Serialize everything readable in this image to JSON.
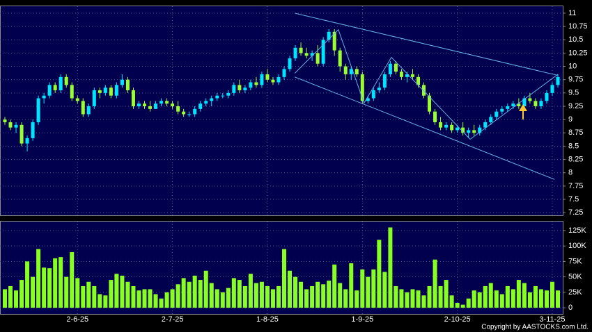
{
  "chart_data": [
    {
      "type": "candlestick",
      "up_color": "#00e5ff",
      "down_color": "#99ff33",
      "line_color": "#6ab0e8",
      "open": [
        9.0,
        8.95,
        8.85,
        8.9,
        8.55,
        8.65,
        8.95,
        9.4,
        9.45,
        9.65,
        9.55,
        9.8,
        9.65,
        9.4,
        9.35,
        9.1,
        9.25,
        9.55,
        9.5,
        9.6,
        9.45,
        9.65,
        9.75,
        9.55,
        9.25,
        9.3,
        9.25,
        9.2,
        9.3,
        9.35,
        9.3,
        9.25,
        9.15,
        9.1,
        9.1,
        9.2,
        9.3,
        9.35,
        9.4,
        9.45,
        9.45,
        9.5,
        9.65,
        9.55,
        9.6,
        9.7,
        9.65,
        9.85,
        9.75,
        9.7,
        9.8,
        9.95,
        10.15,
        10.35,
        10.25,
        10.2,
        10.25,
        10.05,
        10.5,
        10.65,
        10.3,
        10.0,
        9.85,
        9.95,
        9.85,
        9.35,
        9.4,
        9.55,
        9.6,
        9.85,
        10.05,
        9.9,
        9.8,
        9.85,
        9.8,
        9.65,
        9.45,
        9.15,
        8.95,
        8.85,
        8.9,
        8.8,
        8.85,
        8.75,
        8.8,
        8.75,
        8.85,
        8.95,
        9.05,
        9.15,
        9.2,
        9.25,
        9.3,
        9.25,
        9.4,
        9.35,
        9.25,
        9.35,
        9.5,
        9.65
      ],
      "high": [
        9.05,
        9.0,
        8.95,
        8.95,
        8.7,
        9.0,
        9.45,
        9.5,
        9.7,
        9.7,
        9.85,
        9.85,
        9.7,
        9.45,
        9.4,
        9.3,
        9.6,
        9.6,
        9.65,
        9.65,
        9.7,
        9.85,
        9.8,
        9.6,
        9.35,
        9.35,
        9.35,
        9.35,
        9.4,
        9.4,
        9.35,
        9.35,
        9.2,
        9.15,
        9.25,
        9.35,
        9.4,
        9.45,
        9.5,
        9.5,
        9.55,
        9.7,
        9.75,
        9.65,
        9.75,
        9.8,
        9.9,
        9.95,
        9.8,
        9.85,
        10.0,
        10.2,
        10.4,
        10.45,
        10.35,
        10.3,
        10.4,
        10.55,
        10.7,
        10.7,
        10.35,
        10.05,
        10.0,
        10.0,
        9.9,
        9.45,
        9.6,
        9.7,
        9.9,
        10.1,
        10.1,
        9.95,
        9.9,
        9.95,
        9.85,
        9.7,
        9.5,
        9.2,
        9.05,
        8.95,
        8.95,
        8.9,
        8.95,
        8.85,
        8.9,
        8.9,
        9.0,
        9.1,
        9.2,
        9.25,
        9.3,
        9.35,
        9.4,
        9.45,
        9.5,
        9.4,
        9.4,
        9.55,
        9.7,
        9.85
      ],
      "low": [
        8.9,
        8.8,
        8.75,
        8.5,
        8.4,
        8.6,
        8.9,
        9.3,
        9.4,
        9.5,
        9.5,
        9.6,
        9.35,
        9.3,
        9.05,
        9.05,
        9.2,
        9.4,
        9.45,
        9.4,
        9.4,
        9.6,
        9.5,
        9.2,
        9.2,
        9.2,
        9.15,
        9.2,
        9.25,
        9.25,
        9.2,
        9.1,
        9.05,
        9.05,
        9.05,
        9.15,
        9.25,
        9.25,
        9.35,
        9.4,
        9.4,
        9.45,
        9.5,
        9.5,
        9.55,
        9.6,
        9.6,
        9.7,
        9.65,
        9.65,
        9.75,
        9.9,
        10.1,
        10.2,
        10.15,
        10.1,
        10.0,
        10.0,
        10.45,
        10.2,
        9.9,
        9.75,
        9.75,
        9.8,
        9.3,
        9.3,
        9.35,
        9.5,
        9.55,
        9.8,
        9.85,
        9.75,
        9.7,
        9.75,
        9.6,
        9.4,
        9.1,
        8.9,
        8.8,
        8.8,
        8.75,
        8.75,
        8.7,
        8.65,
        8.7,
        8.7,
        8.8,
        8.9,
        9.0,
        9.1,
        9.15,
        9.2,
        9.2,
        9.2,
        9.3,
        9.2,
        9.2,
        9.3,
        9.45,
        9.6
      ],
      "close": [
        8.95,
        8.85,
        8.9,
        8.55,
        8.65,
        8.95,
        9.4,
        9.45,
        9.65,
        9.55,
        9.8,
        9.65,
        9.4,
        9.35,
        9.1,
        9.25,
        9.55,
        9.5,
        9.6,
        9.45,
        9.65,
        9.75,
        9.55,
        9.25,
        9.3,
        9.25,
        9.2,
        9.3,
        9.35,
        9.3,
        9.25,
        9.15,
        9.1,
        9.1,
        9.2,
        9.3,
        9.35,
        9.4,
        9.45,
        9.45,
        9.5,
        9.65,
        9.55,
        9.6,
        9.7,
        9.65,
        9.85,
        9.75,
        9.7,
        9.8,
        9.95,
        10.15,
        10.35,
        10.25,
        10.2,
        10.25,
        10.05,
        10.5,
        10.65,
        10.3,
        10.0,
        9.85,
        9.95,
        9.85,
        9.35,
        9.4,
        9.55,
        9.6,
        9.85,
        10.05,
        9.9,
        9.8,
        9.85,
        9.8,
        9.65,
        9.45,
        9.15,
        8.95,
        8.85,
        8.9,
        8.8,
        8.85,
        8.75,
        8.8,
        8.75,
        8.85,
        8.95,
        9.05,
        9.15,
        9.2,
        9.25,
        9.3,
        9.25,
        9.4,
        9.35,
        9.25,
        9.35,
        9.5,
        9.65,
        9.8
      ],
      "trendlines": [
        {
          "x": [
            51.9,
            99
          ],
          "y": [
            11,
            9.83
          ]
        },
        {
          "x": [
            51.9,
            98.4
          ],
          "y": [
            9.8,
            7.875
          ]
        },
        {
          "x": [
            51.9,
            59.7,
            64.3,
            69.2,
            83.3
          ],
          "y": [
            9.87,
            10.69,
            9.31,
            10.17,
            8.63
          ]
        },
        {
          "x": [
            83.3,
            99
          ],
          "y": [
            8.63,
            9.85
          ]
        }
      ],
      "ylim": [
        7.2,
        11.13
      ],
      "yticks": [
        11,
        10.75,
        10.5,
        10.25,
        10,
        9.75,
        9.5,
        9.25,
        9,
        8.75,
        8.5,
        8.25,
        8,
        7.75,
        7.5,
        7.25
      ],
      "grid": true
    },
    {
      "type": "bar",
      "color": "#88ff22",
      "categories": [
        null,
        null,
        null,
        null,
        null,
        null,
        null,
        null,
        null,
        null,
        null,
        null,
        null,
        "2-6-25",
        null,
        null,
        null,
        null,
        null,
        null,
        null,
        null,
        null,
        null,
        null,
        null,
        null,
        null,
        null,
        null,
        "2-7-25",
        null,
        null,
        null,
        null,
        null,
        null,
        null,
        null,
        null,
        null,
        null,
        null,
        null,
        null,
        null,
        null,
        "1-8-25",
        null,
        null,
        null,
        null,
        null,
        null,
        null,
        null,
        null,
        null,
        null,
        null,
        null,
        null,
        null,
        null,
        "1-9-25",
        null,
        null,
        null,
        null,
        null,
        null,
        null,
        null,
        null,
        null,
        null,
        null,
        null,
        null,
        null,
        null,
        "2-10-25",
        null,
        null,
        null,
        null,
        null,
        null,
        null,
        null,
        null,
        null,
        null,
        null,
        null,
        null,
        null,
        null,
        "3-11-25",
        null
      ],
      "values": [
        30000,
        35000,
        28000,
        45000,
        75000,
        50000,
        95000,
        65000,
        64000,
        80000,
        82000,
        50000,
        90000,
        48000,
        35000,
        42000,
        35000,
        22000,
        20000,
        45000,
        55000,
        52000,
        42000,
        35000,
        28000,
        30000,
        30000,
        22000,
        15000,
        25000,
        30000,
        38000,
        48000,
        42000,
        52000,
        45000,
        60000,
        40000,
        30000,
        25000,
        32000,
        48000,
        45000,
        35000,
        55000,
        40000,
        42000,
        35000,
        30000,
        35000,
        95000,
        60000,
        50000,
        42000,
        30000,
        35000,
        42000,
        38000,
        44000,
        70000,
        40000,
        30000,
        72000,
        28000,
        62000,
        50000,
        62000,
        110000,
        58000,
        130000,
        35000,
        30000,
        25000,
        30000,
        28000,
        20000,
        35000,
        78000,
        35000,
        45000,
        20000,
        8000,
        5000,
        15000,
        28000,
        25000,
        35000,
        40000,
        28000,
        22000,
        35000,
        30000,
        45000,
        40000,
        25000,
        35000,
        30000,
        28000,
        42000,
        28000
      ],
      "ylim": [
        -10000,
        139500
      ],
      "yticks": [
        {
          "value": 125000,
          "label": "125K"
        },
        {
          "value": 100000,
          "label": "100K"
        },
        {
          "value": 75000,
          "label": "75K"
        },
        {
          "value": 50000,
          "label": "50K"
        },
        {
          "value": 25000,
          "label": "25K"
        },
        0
      ],
      "grid": true
    }
  ],
  "footer": "Copyright by AASTOCKS.com Ltd."
}
